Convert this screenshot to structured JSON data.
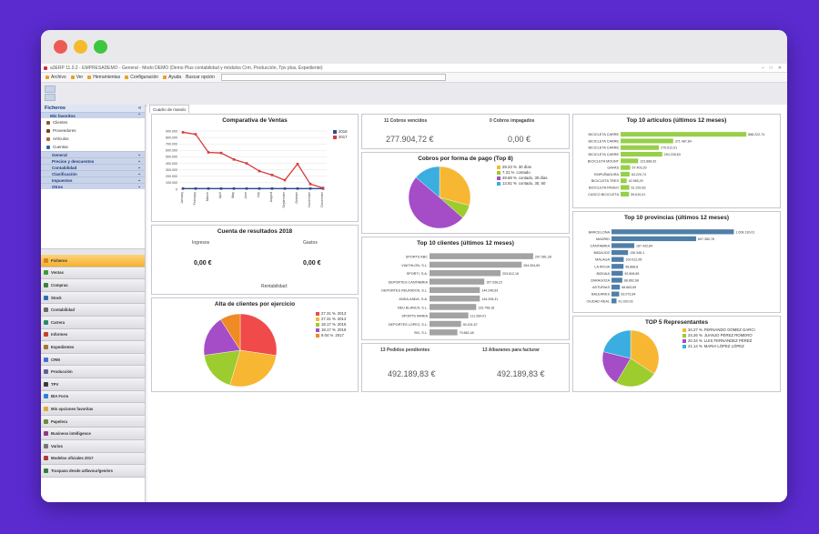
{
  "window": {
    "dot_colors": [
      "#ee5b56",
      "#f6ba2d",
      "#3dc640"
    ],
    "app_title": "a3ERP 11.0.2 - EMPRESADEMO - General - Modo DEMO (Demo Plus contabilidad y módulos Crm, Producción, Tpv plus, Expediente)",
    "controls": [
      "–",
      "□",
      "✕"
    ]
  },
  "menu": {
    "items": [
      "Archivo",
      "Ver",
      "Herramientas",
      "Configuración",
      "Ayuda"
    ],
    "search_label": "Buscar opción"
  },
  "sidebar": {
    "title": "Ficheros",
    "favorites_header": "Mis favoritos",
    "favorites": [
      {
        "label": "Clientes",
        "icon": "people-icon",
        "color": "#8a5a2c"
      },
      {
        "label": "Proveedores",
        "icon": "truck-icon",
        "color": "#6d4423"
      },
      {
        "label": "Artículos",
        "icon": "box-icon",
        "color": "#b5651d"
      },
      {
        "label": "Cuentas",
        "icon": "book-icon",
        "color": "#2b6cb0"
      }
    ],
    "sections": [
      "General",
      "Precios y descuentos",
      "Contabilidad",
      "Clasificación",
      "Impuestos",
      "Otros"
    ],
    "nav": [
      {
        "label": "Ficheros",
        "color": "#d9821a"
      },
      {
        "label": "Ventas",
        "color": "#3c9a3c"
      },
      {
        "label": "Compras",
        "color": "#3f7d3f"
      },
      {
        "label": "Stock",
        "color": "#2e6fb3"
      },
      {
        "label": "Contabilidad",
        "color": "#6b6b6b"
      },
      {
        "label": "Cartera",
        "color": "#2b8a6e"
      },
      {
        "label": "Informes",
        "color": "#c7402f"
      },
      {
        "label": "Expedientes",
        "color": "#a07a2a"
      },
      {
        "label": "CRM",
        "color": "#4a6fd1"
      },
      {
        "label": "Producción",
        "color": "#5f5f9e"
      },
      {
        "label": "TPV",
        "color": "#3a3a3a"
      },
      {
        "label": "BIA Form",
        "color": "#2f7fd6"
      },
      {
        "label": "Mis opciones favoritas",
        "color": "#e0a93a"
      },
      {
        "label": "Papelera",
        "color": "#6e8a3e"
      },
      {
        "label": "Business intelligence",
        "color": "#8a3a8a"
      },
      {
        "label": "Varios",
        "color": "#777777"
      },
      {
        "label": "Modelos oficiales 2017",
        "color": "#b03a3a"
      },
      {
        "label": "Traspaso desde a3favour/gen/ers",
        "color": "#3a7a3a"
      }
    ]
  },
  "tab": {
    "label": "Cuadro de mando"
  },
  "ventas": {
    "title": "Comparativa de Ventas",
    "legend": [
      {
        "name": "2018",
        "color": "#2f4b8f"
      },
      {
        "name": "2017",
        "color": "#d9393b"
      }
    ],
    "chart_data": {
      "type": "line",
      "categories": [
        "January",
        "February",
        "March",
        "April",
        "May",
        "June",
        "July",
        "August",
        "September",
        "October",
        "November",
        "December"
      ],
      "yticks": [
        "0",
        "100.000",
        "200.000",
        "300.000",
        "400.000",
        "500.000",
        "600.000",
        "700.000",
        "800.000",
        "900.000"
      ],
      "ylim": [
        0,
        900000
      ],
      "series": [
        {
          "name": "2018",
          "color": "#2f4b8f",
          "values": [
            10000,
            10000,
            10000,
            10000,
            10000,
            10000,
            10000,
            10000,
            10000,
            10000,
            10000,
            10000
          ]
        },
        {
          "name": "2017",
          "color": "#d9393b",
          "values": [
            880000,
            850000,
            570000,
            560000,
            460000,
            400000,
            280000,
            220000,
            140000,
            390000,
            80000,
            20000
          ]
        }
      ]
    }
  },
  "cuenta": {
    "title": "Cuenta de resultados 2018",
    "ingresos_label": "Ingresos",
    "gastos_label": "Gastos",
    "ingresos_value": "0,00 €",
    "gastos_value": "0,00 €",
    "rentabilidad_label": "Rentabilidad:"
  },
  "alta": {
    "title": "Alta de clientes por ejercicio",
    "chart_data": {
      "type": "pie",
      "slices": [
        {
          "label": "27.31 %",
          "year": "2013",
          "value": 27.31,
          "color": "#f04a4a"
        },
        {
          "label": "27.31 %",
          "year": "2014",
          "value": 27.31,
          "color": "#f7b733"
        },
        {
          "label": "18.17 %",
          "year": "2015",
          "value": 18.17,
          "color": "#9ccc2e"
        },
        {
          "label": "18.17 %",
          "year": "2016",
          "value": 18.17,
          "color": "#a54cc7"
        },
        {
          "label": "9.04 %",
          "year": "2017",
          "value": 9.04,
          "color": "#f08a24"
        }
      ]
    }
  },
  "cobros": {
    "vencidos_label": "11  Cobros vencidos",
    "impagados_label": "0  Cobros impagados",
    "vencidos_value": "277.904,72 €",
    "impagados_value": "0,00 €"
  },
  "cobros_pago": {
    "title": "Cobros por forma de pago (Top 8)",
    "chart_data": {
      "type": "pie",
      "slices": [
        {
          "label": "29.23 %",
          "name": "30 días",
          "value": 29.23,
          "color": "#f7b733"
        },
        {
          "label": "7.31 %",
          "name": "contado",
          "value": 7.31,
          "color": "#9ccc2e"
        },
        {
          "label": "49.68 %",
          "name": "contado, 30 días",
          "value": 49.68,
          "color": "#a54cc7"
        },
        {
          "label": "13.81 %",
          "name": "contado, 30, 60",
          "value": 13.81,
          "color": "#3aaee0"
        }
      ]
    }
  },
  "top_clientes": {
    "title": "Top 10 clientes (últimos 12 meses)",
    "chart_data": {
      "type": "bar",
      "categories": [
        "SPORTS ABC",
        "VIAITHLON, S.L.",
        "SPORTI, S.A.",
        "DEPORTES CANTABRIA",
        "DEPORTES REUNIDOS, S.L.",
        "ANDA-ANDA, S.A.",
        "NEU BLANCA, S.L.",
        "SPORTS MARIA",
        "DEPORTES LOPEZ, S.L.",
        "SKI, S.L."
      ],
      "values": [
        297081.28,
        264264.69,
        203612.16,
        157038.22,
        144246.63,
        144208.41,
        133798.18,
        111284.01,
        90431.67,
        79862.48
      ],
      "labels": [
        "297.081,28",
        "264.264,69",
        "203.612,16",
        "157.038,22",
        "144.246,63",
        "144.208,41",
        "133.798,18",
        "111.284,01",
        "90.431,67",
        "79.862,48"
      ],
      "color": "#a3a3a3",
      "xlim": [
        0,
        300000
      ]
    }
  },
  "pedidos": {
    "pedidos_label": "13  Pedidos pendientes",
    "albaranes_label": "13  Albaranes para facturar",
    "pedidos_value": "492.189,83 €",
    "albaranes_value": "492.189,83 €"
  },
  "top_articulos": {
    "title": "Top 10 artículos (últimos 12 meses)",
    "chart_data": {
      "type": "bar",
      "categories": [
        "BICICLETA CARRE",
        "BICICLETA CARRE",
        "BICICLETA CARRE",
        "BICICLETA CARRE",
        "BICICLETA MOUNT",
        "GAFAS",
        "EMPUÑADURA",
        "BICICLETA TRES",
        "BICICLETA PASEO",
        "CASCO BICICLETA"
      ],
      "values": [
        888222.74,
        371487.84,
        270612.91,
        294228.63,
        123888.92,
        67403.29,
        63220.74,
        42965.29,
        61292.83,
        59610.01
      ],
      "labels": [
        "888.222,74",
        "371.487,84",
        "270.612,91",
        "294.228,63",
        "123.888,92",
        "67.403,29",
        "63.220,74",
        "42.965,29",
        "61.292,83",
        "59.610,01"
      ],
      "color": "#97cf4a",
      "xlim": [
        0,
        900000
      ]
    }
  },
  "top_provincias": {
    "title": "Top 10 provincias (últimos 12 meses)",
    "chart_data": {
      "type": "bar",
      "categories": [
        "BARCELONA",
        "MADRID",
        "CANTABRIA",
        "BADAJOZ",
        "MALAGA",
        "LA RIOJA",
        "BIZKAIA",
        "ZARAGOZA",
        "ASTURIAS",
        "BALEARES",
        "CIUDAD REAL"
      ],
      "values": [
        1008130.01,
        697380.76,
        187432.84,
        136346.1,
        100612.95,
        98868.8,
        92808.85,
        88862.68,
        68683.69,
        63072.84,
        41020.03
      ],
      "labels": [
        "1.008.130,01",
        "697.380,76",
        "187.432,84",
        "136.346,1",
        "100.612,95",
        "98.868,8",
        "92.808,85",
        "88.862,68",
        "68.683,69",
        "63.072,84",
        "41.020,03"
      ],
      "color": "#4f7fa8",
      "xlim": [
        0,
        1050000
      ]
    }
  },
  "representantes": {
    "title": "TOP 5 Representantes",
    "chart_data": {
      "type": "pie",
      "slices": [
        {
          "label": "34.27 %",
          "name": "FERNANDO GÓMEZ GARCI",
          "value": 34.27,
          "color": "#f7b733"
        },
        {
          "label": "24.26 %",
          "name": "JUANJO PÉREZ ROMERO",
          "value": 24.26,
          "color": "#9ccc2e"
        },
        {
          "label": "20.34 %",
          "name": "LUIS FERNANDEZ PÉREZ",
          "value": 20.34,
          "color": "#a54cc7"
        },
        {
          "label": "21.14 %",
          "name": "MARIA LÓPEZ LÓPEZ",
          "value": 21.14,
          "color": "#3aaee0"
        }
      ]
    }
  }
}
